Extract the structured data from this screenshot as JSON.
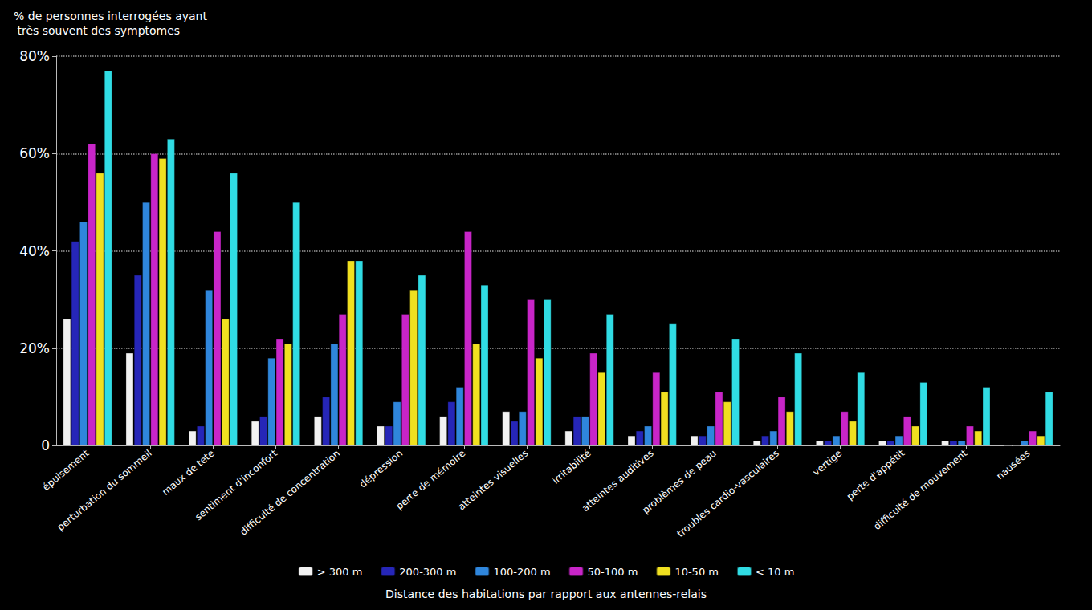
{
  "chart_data": {
    "type": "bar",
    "ylabel": "% de personnes interrogées ayant très souvent des symptomes",
    "legend_title": "Distance des habitations par rapport aux antennes-relais",
    "categories": [
      "épuisement",
      "perturbation du sommeil",
      "maux de tete",
      "sentiment d'inconfort",
      "difficulté de concentration",
      "dépression",
      "perte de mémoire",
      "atteintes visuelles",
      "irritabilité",
      "atteintes auditives",
      "problèmes de peau",
      "troubles cardio-vasculaires",
      "vertige",
      "perte d'appétit",
      "difficulté de mouvement",
      "nausées"
    ],
    "series": [
      {
        "name": "> 300 m",
        "color": "#f2f2f2",
        "values": [
          26,
          19,
          3,
          5,
          6,
          4,
          6,
          7,
          3,
          2,
          2,
          1,
          1,
          1,
          1,
          0
        ]
      },
      {
        "name": "200-300 m",
        "color": "#2626b8",
        "values": [
          42,
          35,
          4,
          6,
          10,
          4,
          9,
          5,
          6,
          3,
          2,
          2,
          1,
          1,
          1,
          0
        ]
      },
      {
        "name": "100-200 m",
        "color": "#2f86dc",
        "values": [
          46,
          50,
          32,
          18,
          21,
          9,
          12,
          7,
          6,
          4,
          4,
          3,
          2,
          2,
          1,
          1
        ]
      },
      {
        "name": "50-100 m",
        "color": "#c825c8",
        "values": [
          62,
          60,
          44,
          22,
          27,
          27,
          44,
          30,
          19,
          15,
          11,
          10,
          7,
          6,
          4,
          3
        ]
      },
      {
        "name": "10-50 m",
        "color": "#f0e020",
        "values": [
          56,
          59,
          26,
          21,
          38,
          32,
          21,
          18,
          15,
          11,
          9,
          7,
          5,
          4,
          3,
          2
        ]
      },
      {
        "name": "< 10 m",
        "color": "#30dce4",
        "values": [
          77,
          63,
          56,
          50,
          38,
          35,
          33,
          30,
          27,
          25,
          22,
          19,
          15,
          13,
          12,
          11
        ]
      }
    ],
    "ylim": [
      0,
      80
    ],
    "yticks": [
      0,
      {
        "value": 20,
        "label": "20%"
      },
      {
        "value": 40,
        "label": "40%"
      },
      {
        "value": 60,
        "label": "60%"
      },
      {
        "value": 80,
        "label": "80%"
      }
    ],
    "grid": true,
    "legend": "bottom"
  }
}
